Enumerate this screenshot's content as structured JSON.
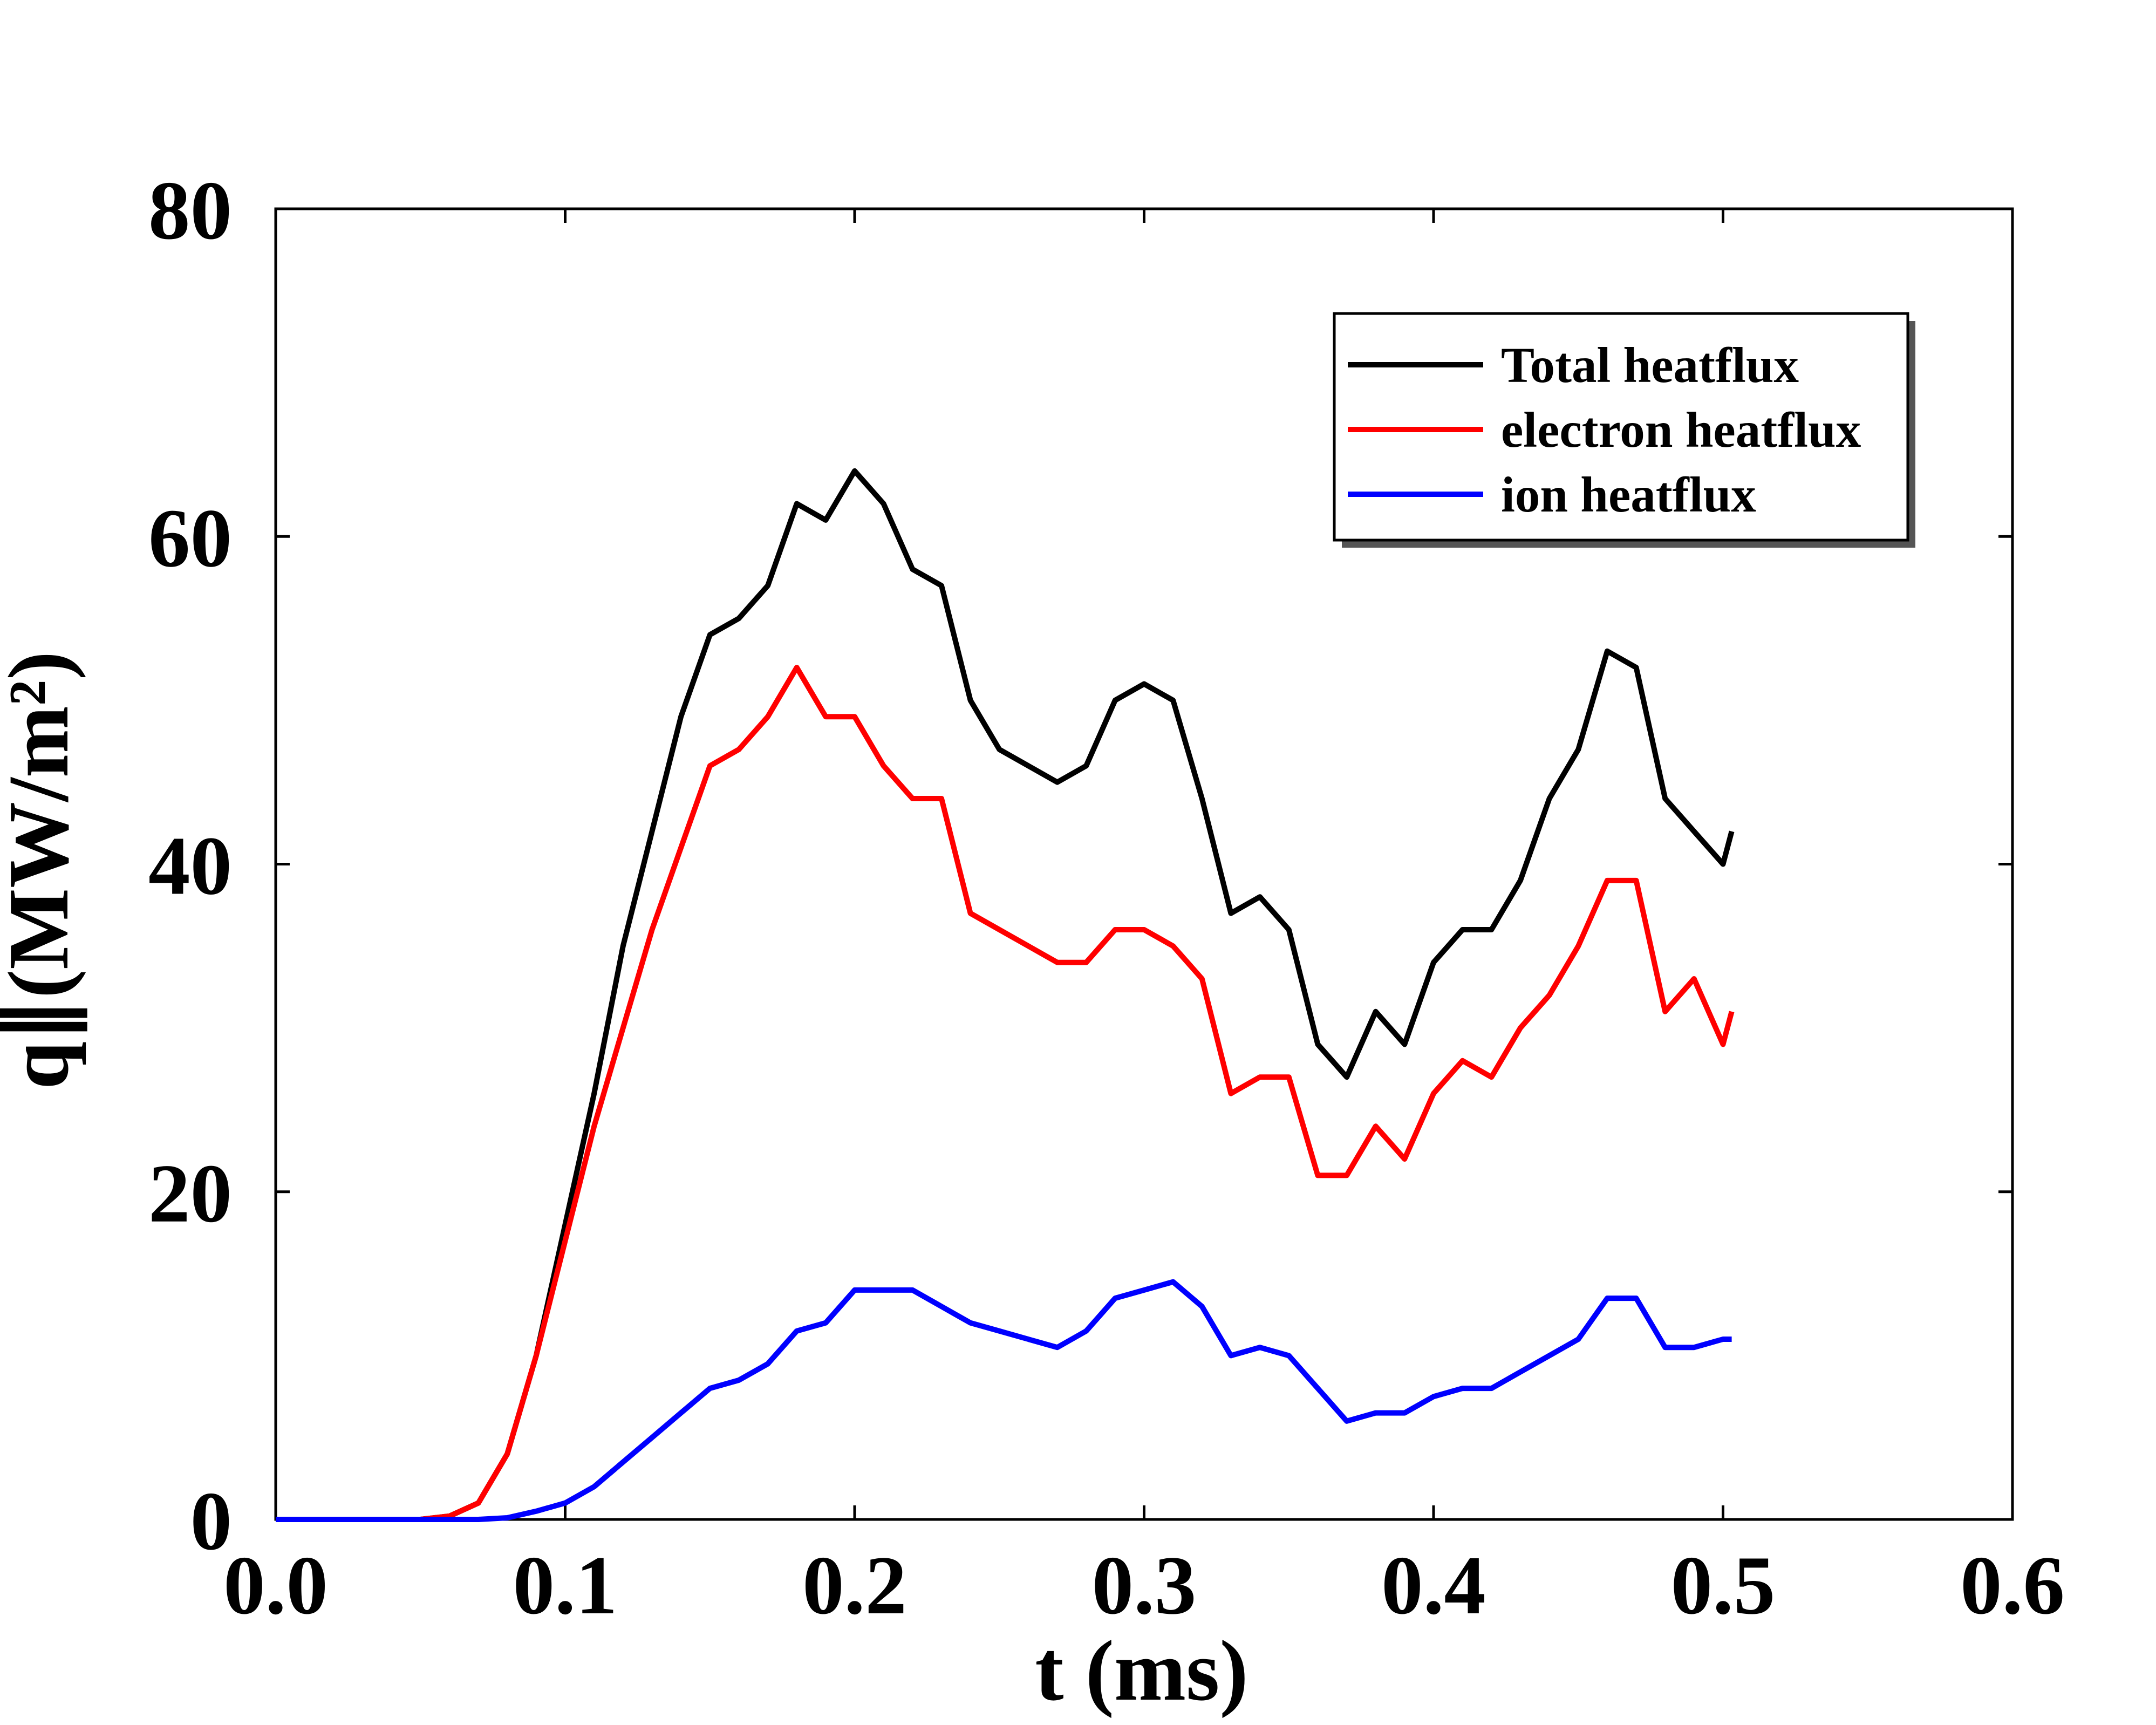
{
  "chart_data": {
    "type": "line",
    "xlabel": "t (ms)",
    "ylabel": "q∥(MW/m²)",
    "x": [
      0,
      0.01,
      0.02,
      0.03,
      0.04,
      0.05,
      0.06,
      0.07,
      0.08,
      0.09,
      0.1,
      0.11,
      0.12,
      0.13,
      0.14,
      0.15,
      0.16,
      0.17,
      0.18,
      0.19,
      0.2,
      0.21,
      0.22,
      0.23,
      0.24,
      0.25,
      0.26,
      0.27,
      0.28,
      0.29,
      0.3,
      0.31,
      0.32,
      0.33,
      0.34,
      0.35,
      0.36,
      0.37,
      0.38,
      0.39,
      0.4,
      0.41,
      0.42,
      0.43,
      0.44,
      0.45,
      0.46,
      0.47,
      0.48,
      0.49,
      0.5,
      0.503
    ],
    "series": [
      {
        "name": "Total heatflux",
        "color": "#000000",
        "values": [
          0,
          0,
          0,
          0,
          0,
          0,
          0.2,
          1,
          4,
          10,
          18,
          26,
          35,
          42,
          49,
          54,
          55,
          57,
          62,
          61,
          64,
          62,
          58,
          57,
          50,
          47,
          46,
          45,
          46,
          50,
          51,
          50,
          44,
          37,
          38,
          36,
          29,
          27,
          31,
          29,
          34,
          36,
          36,
          39,
          44,
          47,
          53,
          52,
          44,
          42,
          40,
          42
        ]
      },
      {
        "name": "electron heatflux",
        "color": "#ff0000",
        "values": [
          0,
          0,
          0,
          0,
          0,
          0,
          0.2,
          1,
          4,
          10,
          17,
          24,
          30,
          36,
          41,
          46,
          47,
          49,
          52,
          49,
          49,
          46,
          44,
          44,
          37,
          36,
          35,
          34,
          34,
          36,
          36,
          35,
          33,
          26,
          27,
          27,
          21,
          21,
          24,
          22,
          26,
          28,
          27,
          30,
          32,
          35,
          39,
          39,
          31,
          33,
          29,
          31
        ]
      },
      {
        "name": "ion heatflux",
        "color": "#0000ff",
        "values": [
          0,
          0,
          0,
          0,
          0,
          0,
          0,
          0,
          0.1,
          0.5,
          1,
          2,
          3.5,
          5,
          6.5,
          8,
          8.5,
          9.5,
          11.5,
          12,
          14,
          14,
          14,
          13,
          12,
          11.5,
          11,
          10.5,
          11.5,
          13.5,
          14,
          14.5,
          13,
          10,
          10.5,
          10,
          8,
          6,
          6.5,
          6.5,
          7.5,
          8,
          8,
          9,
          10,
          11,
          13.5,
          13.5,
          10.5,
          10.5,
          11,
          11
        ]
      }
    ],
    "xlim": [
      0,
      0.6
    ],
    "xticks": [
      {
        "value": 0,
        "label": "0.0"
      },
      0.1,
      0.2,
      0.3,
      0.4,
      0.5,
      0.6
    ],
    "ylim": [
      0,
      80
    ],
    "yticks": [
      0,
      20,
      40,
      60,
      80
    ],
    "legend": "upper right"
  }
}
